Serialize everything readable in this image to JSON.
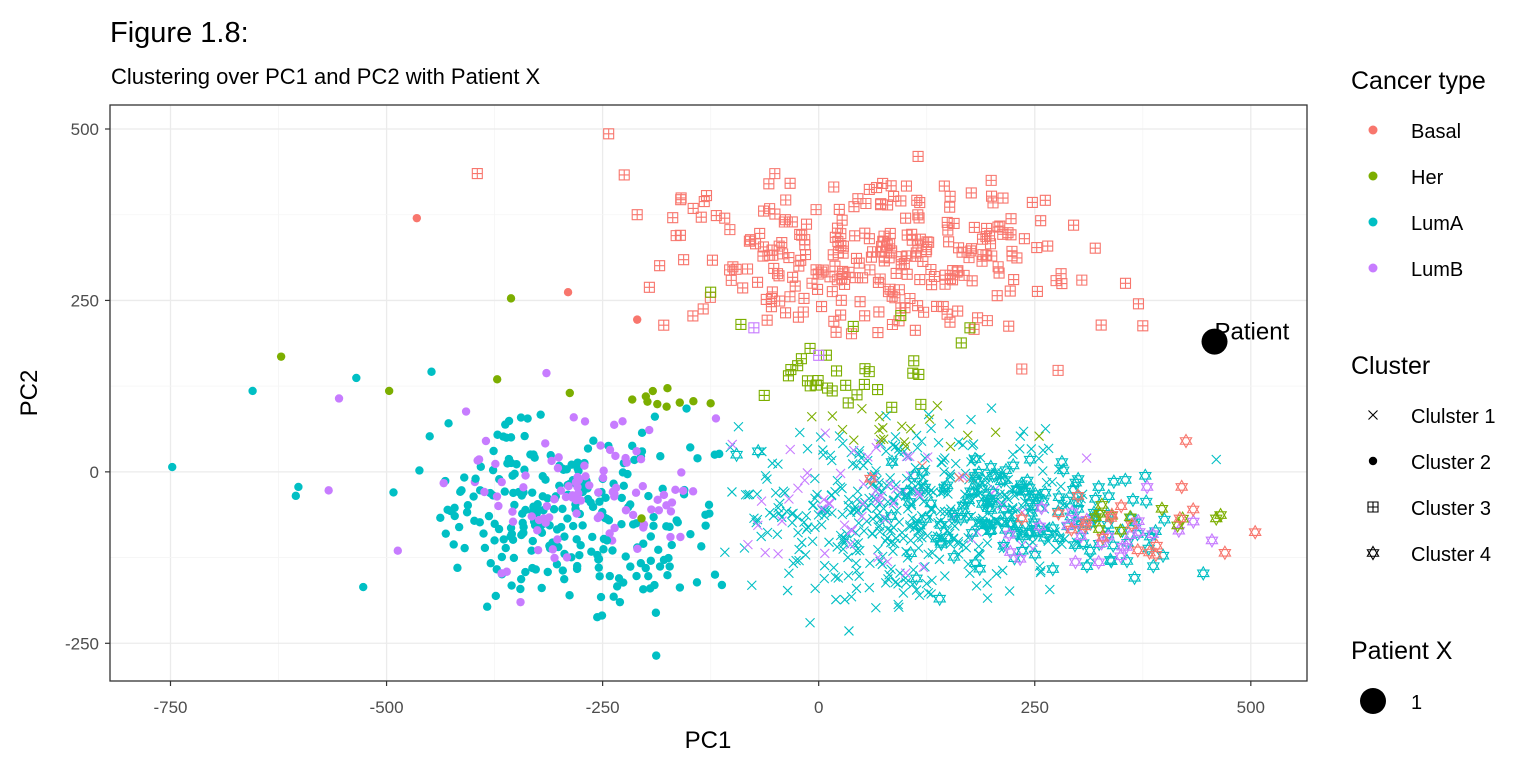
{
  "title": "Figure 1.8:",
  "subtitle": "Clustering over PC1 and PC2 with Patient X",
  "chart_data": {
    "type": "scatter",
    "xlabel": "PC1",
    "ylabel": "PC2",
    "xlim": [
      -820,
      565
    ],
    "ylim": [
      -305,
      535
    ],
    "x_ticks": [
      -750,
      -500,
      -250,
      0,
      250,
      500
    ],
    "y_ticks": [
      -250,
      0,
      250,
      500
    ],
    "x_tick_labels": [
      "-750",
      "-500",
      "-250",
      "0",
      "250",
      "500"
    ],
    "y_tick_labels": [
      "-250",
      "0",
      "250",
      "500"
    ],
    "grid": true,
    "legend_placement": "right",
    "colors": {
      "Basal": "#F8766D",
      "Her": "#7CAE00",
      "LumA": "#00BFC4",
      "LumB": "#C77CFF"
    },
    "legends": {
      "cancer_type": {
        "title": "Cancer type",
        "entries": [
          "Basal",
          "Her",
          "LumA",
          "LumB"
        ]
      },
      "cluster": {
        "title": "Cluster",
        "entries": [
          "Clulster 1",
          "Cluster 2",
          "Cluster 3",
          "Cluster 4"
        ],
        "shapes": [
          "x-icon",
          "dot-icon",
          "boxed-plus-icon",
          "star-of-david-icon"
        ]
      },
      "patient": {
        "title": "Patient X",
        "entries": [
          "1"
        ]
      }
    },
    "annotation": {
      "label": "Patient",
      "x": 458,
      "y": 190
    },
    "series": [
      {
        "cluster": "Cluster 2",
        "shape": "dot",
        "points": [
          [
            -748,
            7,
            "LumA"
          ],
          [
            -655,
            118,
            "LumA"
          ],
          [
            -622,
            168,
            "Her"
          ],
          [
            -605,
            -35,
            "LumA"
          ],
          [
            -602,
            -22,
            "LumA"
          ],
          [
            -567,
            -27,
            "LumB"
          ],
          [
            -555,
            107,
            "LumB"
          ],
          [
            -535,
            137,
            "LumA"
          ],
          [
            -527,
            -168,
            "LumA"
          ],
          [
            -497,
            118,
            "Her"
          ],
          [
            -492,
            -30,
            "LumA"
          ],
          [
            -487,
            -115,
            "LumB"
          ],
          [
            -465,
            370,
            "Basal"
          ],
          [
            -462,
            2,
            "LumA"
          ],
          [
            -448,
            146,
            "LumA"
          ],
          [
            -418,
            -140,
            "LumA"
          ],
          [
            -408,
            88,
            "LumB"
          ],
          [
            -397,
            -10,
            "LumA"
          ],
          [
            -385,
            45,
            "LumB"
          ],
          [
            -372,
            135,
            "Her"
          ],
          [
            -367,
            -148,
            "LumB"
          ],
          [
            -356,
            253,
            "Her"
          ],
          [
            -345,
            -190,
            "LumB"
          ],
          [
            -332,
            -65,
            "LumB"
          ],
          [
            -315,
            144,
            "LumB"
          ],
          [
            -290,
            262,
            "Basal"
          ],
          [
            -288,
            115,
            "Her"
          ],
          [
            -255,
            -30,
            "LumB"
          ],
          [
            -245,
            -100,
            "LumA"
          ],
          [
            -230,
            -190,
            "LumA"
          ],
          [
            -210,
            222,
            "Basal"
          ],
          [
            -205,
            -68,
            "Her"
          ],
          [
            -200,
            110,
            "Her"
          ],
          [
            -195,
            -170,
            "LumA"
          ],
          [
            -188,
            -268,
            "LumA"
          ],
          [
            -175,
            122,
            "Her"
          ],
          [
            -160,
            -95,
            "LumB"
          ],
          [
            -145,
            103,
            "Her"
          ],
          [
            -125,
            100,
            "Her"
          ],
          [
            -120,
            -150,
            "LumA"
          ],
          [
            -112,
            -165,
            "LumA"
          ]
        ],
        "clouds": [
          {
            "color": "LumA",
            "n": 250,
            "xr": [
              -470,
              -105
            ],
            "yr": [
              -225,
              110
            ],
            "seed": 3
          },
          {
            "color": "LumB",
            "n": 90,
            "xr": [
              -440,
              -110
            ],
            "yr": [
              -150,
              90
            ],
            "seed": 7
          },
          {
            "color": "Her",
            "n": 6,
            "xr": [
              -230,
              -140
            ],
            "yr": [
              80,
              125
            ],
            "seed": 11
          }
        ]
      },
      {
        "cluster": "Cluster 3",
        "shape": "boxed-plus",
        "points": [
          [
            -395,
            435,
            "Basal"
          ],
          [
            -243,
            493,
            "Basal"
          ],
          [
            -225,
            433,
            "Basal"
          ],
          [
            -210,
            375,
            "Basal"
          ],
          [
            -160,
            345,
            "Basal"
          ],
          [
            -125,
            262,
            "Her"
          ],
          [
            -90,
            215,
            "Her"
          ],
          [
            -75,
            210,
            "LumB"
          ],
          [
            -35,
            140,
            "Her"
          ],
          [
            -20,
            165,
            "Her"
          ],
          [
            -10,
            180,
            "Her"
          ],
          [
            0,
            170,
            "LumB"
          ],
          [
            40,
            212,
            "Her"
          ],
          [
            95,
            228,
            "Her"
          ],
          [
            110,
            162,
            "Her"
          ],
          [
            165,
            188,
            "Her"
          ],
          [
            175,
            210,
            "Her"
          ],
          [
            115,
            460,
            "Basal"
          ],
          [
            200,
            402,
            "Basal"
          ],
          [
            370,
            245,
            "Basal"
          ],
          [
            375,
            213,
            "Basal"
          ],
          [
            355,
            275,
            "Basal"
          ],
          [
            238,
            340,
            "Basal"
          ],
          [
            277,
            148,
            "Basal"
          ],
          [
            235,
            150,
            "Basal"
          ]
        ],
        "clouds": [
          {
            "color": "Basal",
            "n": 260,
            "xr": [
              -230,
              360
            ],
            "yr": [
              190,
              440
            ],
            "seed": 19
          },
          {
            "color": "Her",
            "n": 22,
            "xr": [
              -70,
              170
            ],
            "yr": [
              85,
              180
            ],
            "seed": 23
          }
        ]
      },
      {
        "cluster": "Clulster 1",
        "shape": "x",
        "points": [
          [
            460,
            18,
            "LumA"
          ],
          [
            200,
            93,
            "LumA"
          ],
          [
            50,
            92,
            "Her"
          ],
          [
            -100,
            40,
            "LumB"
          ],
          [
            35,
            -232,
            "LumA"
          ],
          [
            -10,
            -220,
            "LumA"
          ],
          [
            310,
            20,
            "LumB"
          ],
          [
            255,
            52,
            "Her"
          ]
        ],
        "clouds": [
          {
            "color": "LumA",
            "n": 420,
            "xr": [
              -120,
              320
            ],
            "yr": [
              -205,
              90
            ],
            "seed": 31
          },
          {
            "color": "LumB",
            "n": 60,
            "xr": [
              -110,
              260
            ],
            "yr": [
              -170,
              70
            ],
            "seed": 37
          },
          {
            "color": "Her",
            "n": 18,
            "xr": [
              -60,
              240
            ],
            "yr": [
              30,
              100
            ],
            "seed": 41
          },
          {
            "color": "Basal",
            "n": 3,
            "xr": [
              80,
              220
            ],
            "yr": [
              -60,
              20
            ],
            "seed": 43
          }
        ]
      },
      {
        "cluster": "Cluster 4",
        "shape": "star-of-david",
        "points": [
          [
            -95,
            25,
            "LumA"
          ],
          [
            -70,
            30,
            "LumA"
          ],
          [
            215,
            -12,
            "LumA"
          ],
          [
            505,
            -88,
            "Basal"
          ],
          [
            470,
            -118,
            "Basal"
          ],
          [
            425,
            45,
            "Basal"
          ],
          [
            420,
            -22,
            "Basal"
          ],
          [
            465,
            -63,
            "Her"
          ],
          [
            460,
            -68,
            "Her"
          ],
          [
            445,
            -148,
            "LumA"
          ],
          [
            370,
            -72,
            "LumB"
          ],
          [
            380,
            -22,
            "LumB"
          ],
          [
            455,
            -100,
            "LumB"
          ],
          [
            140,
            -185,
            "LumA"
          ],
          [
            120,
            0,
            "LumA"
          ],
          [
            60,
            -10,
            "Basal"
          ],
          [
            235,
            -68,
            "Basal"
          ],
          [
            300,
            -35,
            "Basal"
          ],
          [
            350,
            -50,
            "Basal"
          ]
        ],
        "clouds": [
          {
            "color": "LumA",
            "n": 150,
            "xr": [
              80,
              430
            ],
            "yr": [
              -170,
              30
            ],
            "seed": 53
          },
          {
            "color": "LumB",
            "n": 22,
            "xr": [
              200,
              440
            ],
            "yr": [
              -150,
              -40
            ],
            "seed": 59
          },
          {
            "color": "Her",
            "n": 10,
            "xr": [
              260,
              440
            ],
            "yr": [
              -95,
              -40
            ],
            "seed": 61
          },
          {
            "color": "Basal",
            "n": 14,
            "xr": [
              230,
              470
            ],
            "yr": [
              -130,
              -40
            ],
            "seed": 67
          }
        ]
      },
      {
        "cluster": "Patient X",
        "shape": "big-dot",
        "points": [
          [
            458,
            190,
            "#000000"
          ]
        ]
      }
    ]
  }
}
